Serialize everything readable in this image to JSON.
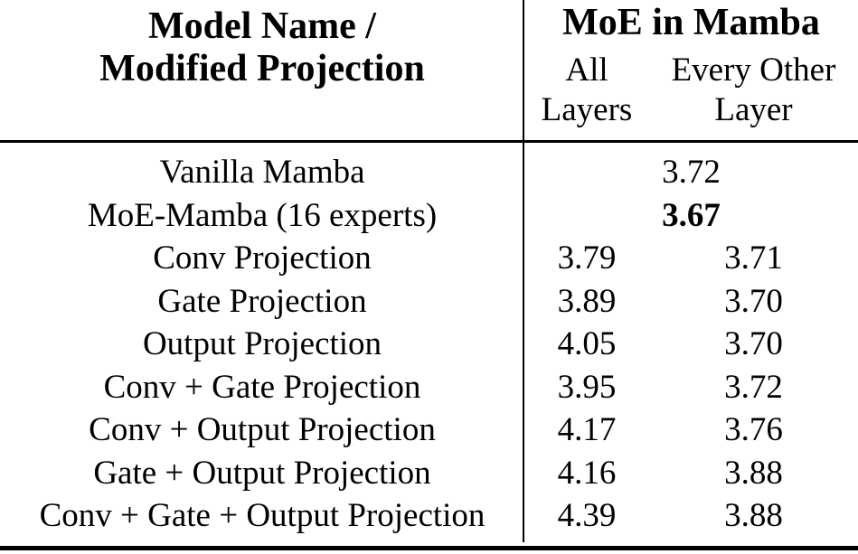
{
  "table": {
    "header": {
      "model_col_line1": "Model Name /",
      "model_col_line2": "Modified Projection",
      "group_title": "MoE in Mamba",
      "sub_all_line1": "All",
      "sub_all_line2": "Layers",
      "sub_every_line1": "Every Other",
      "sub_every_line2": "Layer"
    },
    "rows": [
      {
        "label": "Vanilla Mamba",
        "span_value": "3.72",
        "emphasis": "normal"
      },
      {
        "label": "MoE-Mamba (16 experts)",
        "span_value": "3.67",
        "emphasis": "bold"
      },
      {
        "label": "Conv Projection",
        "all_layers": "3.79",
        "every_other_layer": "3.71"
      },
      {
        "label": "Gate Projection",
        "all_layers": "3.89",
        "every_other_layer": "3.70"
      },
      {
        "label": "Output Projection",
        "all_layers": "4.05",
        "every_other_layer": "3.70"
      },
      {
        "label": "Conv + Gate Projection",
        "all_layers": "3.95",
        "every_other_layer": "3.72"
      },
      {
        "label": "Conv + Output Projection",
        "all_layers": "4.17",
        "every_other_layer": "3.76"
      },
      {
        "label": "Gate + Output Projection",
        "all_layers": "4.16",
        "every_other_layer": "3.88"
      },
      {
        "label": "Conv + Gate + Output Projection",
        "all_layers": "4.39",
        "every_other_layer": "3.88"
      }
    ],
    "colors": {
      "text": "#000000",
      "background": "#ffffff",
      "rule": "#000000"
    }
  }
}
